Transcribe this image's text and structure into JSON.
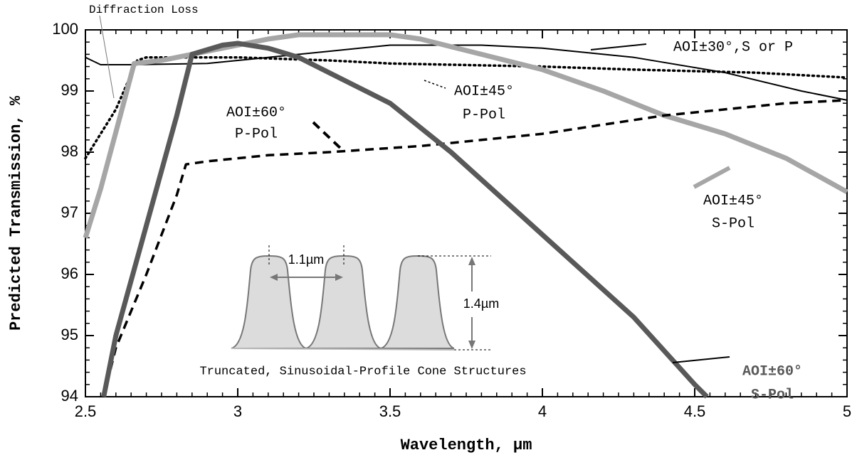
{
  "chart_data": {
    "type": "line",
    "x_label": "Wavelength, µm",
    "y_label": "Predicted Transmission, %",
    "xlim": [
      2.5,
      5
    ],
    "ylim": [
      94,
      100
    ],
    "xticks": [
      2.5,
      3,
      3.5,
      4,
      4.5,
      5
    ],
    "yticks": [
      94,
      95,
      96,
      97,
      98,
      99,
      100
    ],
    "series": [
      {
        "name": [
          "AOI±30°,S or P"
        ],
        "color": "#000000",
        "style": "thin",
        "x": [
          2.5,
          2.55,
          2.65,
          2.9,
          3.1,
          3.3,
          3.5,
          3.8,
          4.0,
          4.3,
          4.6,
          4.85,
          5.0
        ],
        "values": [
          99.55,
          99.43,
          99.43,
          99.45,
          99.55,
          99.65,
          99.75,
          99.75,
          99.7,
          99.55,
          99.3,
          99.0,
          98.85
        ]
      },
      {
        "name": [
          "AOI±45°",
          "P-Pol"
        ],
        "color": "#000000",
        "style": "dotted",
        "x": [
          2.5,
          2.6,
          2.67,
          2.7,
          3.0,
          3.3,
          3.5,
          3.8,
          4.0,
          4.3,
          4.7,
          5.0
        ],
        "values": [
          97.9,
          98.7,
          99.5,
          99.55,
          99.55,
          99.5,
          99.45,
          99.42,
          99.4,
          99.35,
          99.3,
          99.22
        ]
      },
      {
        "name": [
          "AOI±45°",
          "S-Pol"
        ],
        "color": "#a6a6a6",
        "style": "thick",
        "x": [
          2.5,
          2.55,
          2.62,
          2.66,
          2.75,
          2.9,
          3.0,
          3.1,
          3.2,
          3.5,
          3.6,
          3.8,
          4.0,
          4.2,
          4.4,
          4.6,
          4.8,
          5.0
        ],
        "values": [
          96.6,
          97.4,
          98.7,
          99.45,
          99.5,
          99.65,
          99.75,
          99.85,
          99.92,
          99.92,
          99.85,
          99.6,
          99.35,
          99.0,
          98.6,
          98.3,
          97.9,
          97.35
        ]
      },
      {
        "name": [
          "AOI±60°",
          "P-Pol"
        ],
        "color": "#000000",
        "style": "dashed",
        "x": [
          2.56,
          2.6,
          2.7,
          2.8,
          2.83,
          2.9,
          3.1,
          3.3,
          3.6,
          3.8,
          4.0,
          4.2,
          4.4,
          4.6,
          4.8,
          5.0
        ],
        "values": [
          94.0,
          94.8,
          96.0,
          97.3,
          97.8,
          97.85,
          97.95,
          98.0,
          98.1,
          98.2,
          98.3,
          98.45,
          98.6,
          98.7,
          98.8,
          98.85
        ]
      },
      {
        "name": [
          "AOI±60°",
          "S-Pol"
        ],
        "color": "#595959",
        "style": "thick",
        "x": [
          2.56,
          2.6,
          2.7,
          2.8,
          2.85,
          2.95,
          3.0,
          3.1,
          3.2,
          3.3,
          3.5,
          3.7,
          3.9,
          4.1,
          4.3,
          4.5,
          4.54
        ],
        "values": [
          94.0,
          95.0,
          96.8,
          98.6,
          99.6,
          99.75,
          99.78,
          99.7,
          99.55,
          99.3,
          98.8,
          98.0,
          97.1,
          96.2,
          95.3,
          94.2,
          94.0
        ]
      }
    ],
    "annotations": [
      "Diffraction Loss",
      "1.1µm",
      "1.4µm",
      "Truncated, Sinusoidal-Profile Cone Structures"
    ]
  }
}
